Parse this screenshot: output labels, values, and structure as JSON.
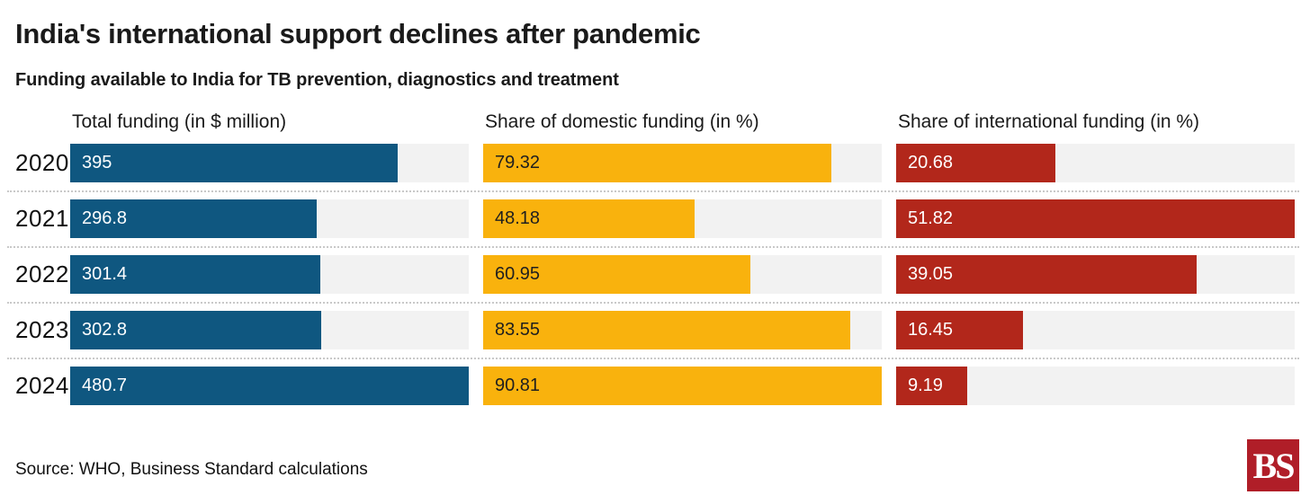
{
  "chart_data": {
    "type": "bar",
    "orientation": "horizontal",
    "title": "India's international support declines after pandemic",
    "subtitle": "Funding available to India for TB prevention, diagnostics and treatment",
    "categories": [
      "2020",
      "2021",
      "2022",
      "2023",
      "2024"
    ],
    "series": [
      {
        "name": "Total funding (in $ million)",
        "values": [
          395,
          296.8,
          301.4,
          302.8,
          480.7
        ],
        "labels": [
          "395",
          "296.8",
          "301.4",
          "302.8",
          "480.7"
        ],
        "color": "#0f5780",
        "label_color": "#ffffff",
        "bar_scale_max": 480.7
      },
      {
        "name": "Share of domestic funding (in %)",
        "values": [
          79.32,
          48.18,
          60.95,
          83.55,
          90.81
        ],
        "labels": [
          "79.32",
          "48.18",
          "60.95",
          "83.55",
          "90.81"
        ],
        "color": "#f9b20d",
        "label_color": "#1f1f1f",
        "bar_scale_max": 90.81
      },
      {
        "name": "Share of international funding (in %)",
        "values": [
          20.68,
          51.82,
          39.05,
          16.45,
          9.19
        ],
        "labels": [
          "20.68",
          "51.82",
          "39.05",
          "16.45",
          "9.19"
        ],
        "color": "#b2271b",
        "label_color": "#ffffff",
        "bar_scale_max": 51.82
      }
    ],
    "track_color": "#f2f2f2",
    "grid": "dotted-row-separators",
    "legend_position": "none"
  },
  "footer": {
    "source": "Source: WHO, Business Standard calculations",
    "logo_text": "BS",
    "logo_color": "#b01e28"
  }
}
